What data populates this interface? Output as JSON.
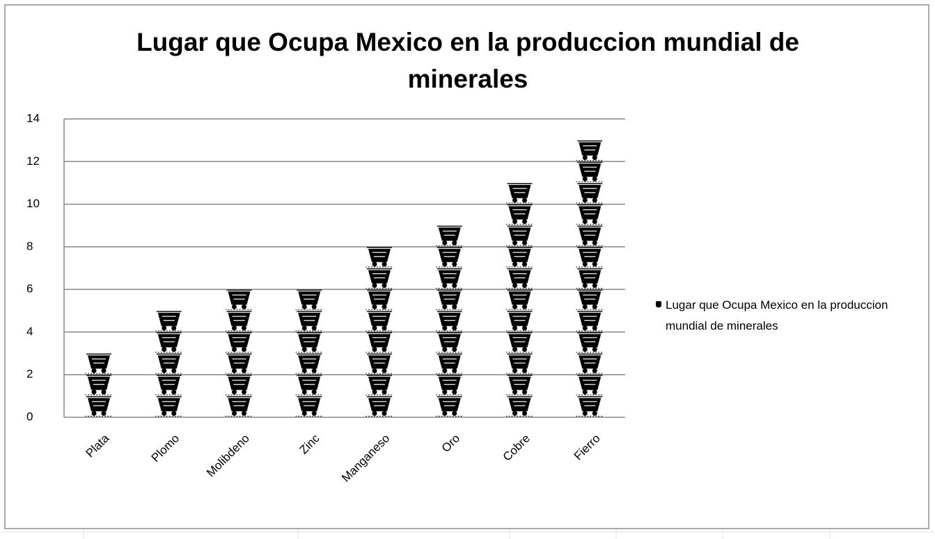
{
  "chart_data": {
    "type": "bar",
    "title": "Lugar que Ocupa Mexico en la produccion mundial de minerales",
    "categories": [
      "Plata",
      "Plomo",
      "Molibdeno",
      "Zinc",
      "Manganeso",
      "Oro",
      "Cobre",
      "Fierro"
    ],
    "series": [
      {
        "name": "Lugar que Ocupa Mexico en la produccion mundial de minerales",
        "color": "#000000",
        "values": [
          3,
          5,
          6,
          6,
          8,
          9,
          11,
          13
        ]
      }
    ],
    "ylim": [
      0,
      14
    ],
    "yticks": [
      0,
      2,
      4,
      6,
      8,
      10,
      12,
      14
    ],
    "grid": true,
    "legend": "right"
  }
}
